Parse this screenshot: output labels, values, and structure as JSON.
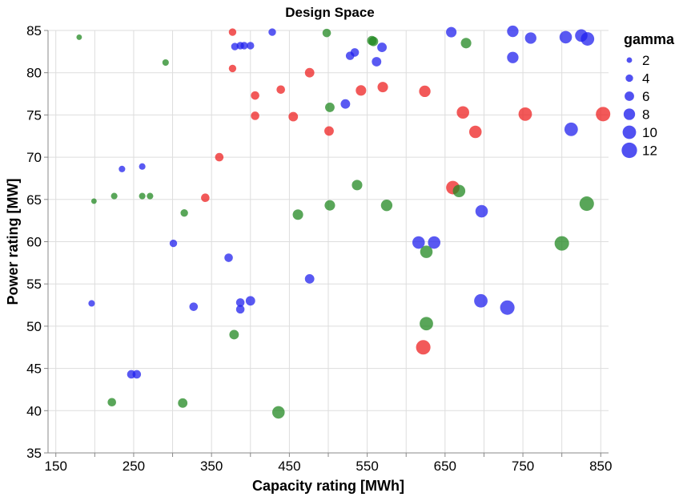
{
  "chart_data": {
    "type": "scatter",
    "title": "Design Space",
    "xlabel": "Capacity rating [MWh]",
    "ylabel": "Power rating [MW]",
    "xlim": [
      140,
      860
    ],
    "ylim": [
      35,
      85
    ],
    "x_minor_ticks": [
      150,
      200,
      250,
      300,
      350,
      400,
      450,
      500,
      550,
      600,
      650,
      700,
      750,
      800,
      850
    ],
    "x_tick_labels": [
      150,
      250,
      350,
      450,
      550,
      650,
      750,
      850
    ],
    "y_ticks": [
      35,
      40,
      45,
      50,
      55,
      60,
      65,
      70,
      75,
      80,
      85
    ],
    "grid": true,
    "size_legend": {
      "title": "gamma",
      "values": [
        2,
        4,
        6,
        8,
        10,
        12
      ],
      "color": "#3333ee"
    },
    "colors": {
      "red": "#ee2222",
      "green": "#228822",
      "blue": "#2222ee"
    },
    "points": [
      {
        "x": 377,
        "y": 84.8,
        "gamma": 4,
        "color": "red"
      },
      {
        "x": 377,
        "y": 80.5,
        "gamma": 4,
        "color": "red"
      },
      {
        "x": 360,
        "y": 70.0,
        "gamma": 5,
        "color": "red"
      },
      {
        "x": 342,
        "y": 65.2,
        "gamma": 5,
        "color": "red"
      },
      {
        "x": 406,
        "y": 77.3,
        "gamma": 5,
        "color": "red"
      },
      {
        "x": 406,
        "y": 74.9,
        "gamma": 5,
        "color": "red"
      },
      {
        "x": 439,
        "y": 78.0,
        "gamma": 5,
        "color": "red"
      },
      {
        "x": 455,
        "y": 74.8,
        "gamma": 6,
        "color": "red"
      },
      {
        "x": 476,
        "y": 80.0,
        "gamma": 6,
        "color": "red"
      },
      {
        "x": 501,
        "y": 73.1,
        "gamma": 6,
        "color": "red"
      },
      {
        "x": 542,
        "y": 77.9,
        "gamma": 7,
        "color": "red"
      },
      {
        "x": 570,
        "y": 78.3,
        "gamma": 7,
        "color": "red"
      },
      {
        "x": 624,
        "y": 77.8,
        "gamma": 8,
        "color": "red"
      },
      {
        "x": 673,
        "y": 75.3,
        "gamma": 9,
        "color": "red"
      },
      {
        "x": 689,
        "y": 73.0,
        "gamma": 9,
        "color": "red"
      },
      {
        "x": 753,
        "y": 75.1,
        "gamma": 10,
        "color": "red"
      },
      {
        "x": 853,
        "y": 75.1,
        "gamma": 11,
        "color": "red"
      },
      {
        "x": 660,
        "y": 66.4,
        "gamma": 10,
        "color": "red"
      },
      {
        "x": 622,
        "y": 47.5,
        "gamma": 11,
        "color": "red"
      },
      {
        "x": 180,
        "y": 84.2,
        "gamma": 2,
        "color": "green"
      },
      {
        "x": 291,
        "y": 81.2,
        "gamma": 3,
        "color": "green"
      },
      {
        "x": 199,
        "y": 64.8,
        "gamma": 2,
        "color": "green"
      },
      {
        "x": 225,
        "y": 65.4,
        "gamma": 3,
        "color": "green"
      },
      {
        "x": 261,
        "y": 65.4,
        "gamma": 3,
        "color": "green"
      },
      {
        "x": 271,
        "y": 65.4,
        "gamma": 3,
        "color": "green"
      },
      {
        "x": 315,
        "y": 63.4,
        "gamma": 4,
        "color": "green"
      },
      {
        "x": 498,
        "y": 84.7,
        "gamma": 5,
        "color": "green"
      },
      {
        "x": 556,
        "y": 83.8,
        "gamma": 6,
        "color": "green"
      },
      {
        "x": 558,
        "y": 83.7,
        "gamma": 6,
        "color": "green"
      },
      {
        "x": 677,
        "y": 83.5,
        "gamma": 7,
        "color": "green"
      },
      {
        "x": 502,
        "y": 75.9,
        "gamma": 6,
        "color": "green"
      },
      {
        "x": 537,
        "y": 66.7,
        "gamma": 7,
        "color": "green"
      },
      {
        "x": 461,
        "y": 63.2,
        "gamma": 7,
        "color": "green"
      },
      {
        "x": 502,
        "y": 64.3,
        "gamma": 7,
        "color": "green"
      },
      {
        "x": 575,
        "y": 64.3,
        "gamma": 8,
        "color": "green"
      },
      {
        "x": 668,
        "y": 66.0,
        "gamma": 9,
        "color": "green"
      },
      {
        "x": 832,
        "y": 64.5,
        "gamma": 11,
        "color": "green"
      },
      {
        "x": 626,
        "y": 58.8,
        "gamma": 9,
        "color": "green"
      },
      {
        "x": 800,
        "y": 59.8,
        "gamma": 11,
        "color": "green"
      },
      {
        "x": 626,
        "y": 50.3,
        "gamma": 10,
        "color": "green"
      },
      {
        "x": 379,
        "y": 49.0,
        "gamma": 6,
        "color": "green"
      },
      {
        "x": 222,
        "y": 41.0,
        "gamma": 5,
        "color": "green"
      },
      {
        "x": 313,
        "y": 40.9,
        "gamma": 6,
        "color": "green"
      },
      {
        "x": 436,
        "y": 39.8,
        "gamma": 9,
        "color": "green"
      },
      {
        "x": 428,
        "y": 84.8,
        "gamma": 4,
        "color": "blue"
      },
      {
        "x": 380,
        "y": 83.1,
        "gamma": 4,
        "color": "blue"
      },
      {
        "x": 387,
        "y": 83.2,
        "gamma": 4,
        "color": "blue"
      },
      {
        "x": 392,
        "y": 83.2,
        "gamma": 4,
        "color": "blue"
      },
      {
        "x": 400,
        "y": 83.2,
        "gamma": 4,
        "color": "blue"
      },
      {
        "x": 658,
        "y": 84.8,
        "gamma": 7,
        "color": "blue"
      },
      {
        "x": 737,
        "y": 84.9,
        "gamma": 8,
        "color": "blue"
      },
      {
        "x": 805,
        "y": 84.2,
        "gamma": 9,
        "color": "blue"
      },
      {
        "x": 825,
        "y": 84.4,
        "gamma": 9,
        "color": "blue"
      },
      {
        "x": 833,
        "y": 84.0,
        "gamma": 10,
        "color": "blue"
      },
      {
        "x": 760,
        "y": 84.1,
        "gamma": 8,
        "color": "blue"
      },
      {
        "x": 528,
        "y": 82.0,
        "gamma": 5,
        "color": "blue"
      },
      {
        "x": 534,
        "y": 82.4,
        "gamma": 5,
        "color": "blue"
      },
      {
        "x": 569,
        "y": 83.0,
        "gamma": 6,
        "color": "blue"
      },
      {
        "x": 562,
        "y": 81.3,
        "gamma": 6,
        "color": "blue"
      },
      {
        "x": 737,
        "y": 81.8,
        "gamma": 8,
        "color": "blue"
      },
      {
        "x": 522,
        "y": 76.3,
        "gamma": 6,
        "color": "blue"
      },
      {
        "x": 812,
        "y": 73.3,
        "gamma": 10,
        "color": "blue"
      },
      {
        "x": 235,
        "y": 68.6,
        "gamma": 3,
        "color": "blue"
      },
      {
        "x": 261,
        "y": 68.9,
        "gamma": 3,
        "color": "blue"
      },
      {
        "x": 301,
        "y": 59.8,
        "gamma": 4,
        "color": "blue"
      },
      {
        "x": 372,
        "y": 58.1,
        "gamma": 5,
        "color": "blue"
      },
      {
        "x": 476,
        "y": 55.6,
        "gamma": 6,
        "color": "blue"
      },
      {
        "x": 616,
        "y": 59.9,
        "gamma": 9,
        "color": "blue"
      },
      {
        "x": 636,
        "y": 59.9,
        "gamma": 9,
        "color": "blue"
      },
      {
        "x": 697,
        "y": 63.6,
        "gamma": 9,
        "color": "blue"
      },
      {
        "x": 196,
        "y": 52.7,
        "gamma": 3,
        "color": "blue"
      },
      {
        "x": 327,
        "y": 52.3,
        "gamma": 5,
        "color": "blue"
      },
      {
        "x": 387,
        "y": 52.8,
        "gamma": 5,
        "color": "blue"
      },
      {
        "x": 387,
        "y": 52.0,
        "gamma": 5,
        "color": "blue"
      },
      {
        "x": 400,
        "y": 53.0,
        "gamma": 6,
        "color": "blue"
      },
      {
        "x": 696,
        "y": 53.0,
        "gamma": 10,
        "color": "blue"
      },
      {
        "x": 730,
        "y": 52.2,
        "gamma": 11,
        "color": "blue"
      },
      {
        "x": 247,
        "y": 44.3,
        "gamma": 5,
        "color": "blue"
      },
      {
        "x": 254,
        "y": 44.3,
        "gamma": 5,
        "color": "blue"
      }
    ]
  }
}
